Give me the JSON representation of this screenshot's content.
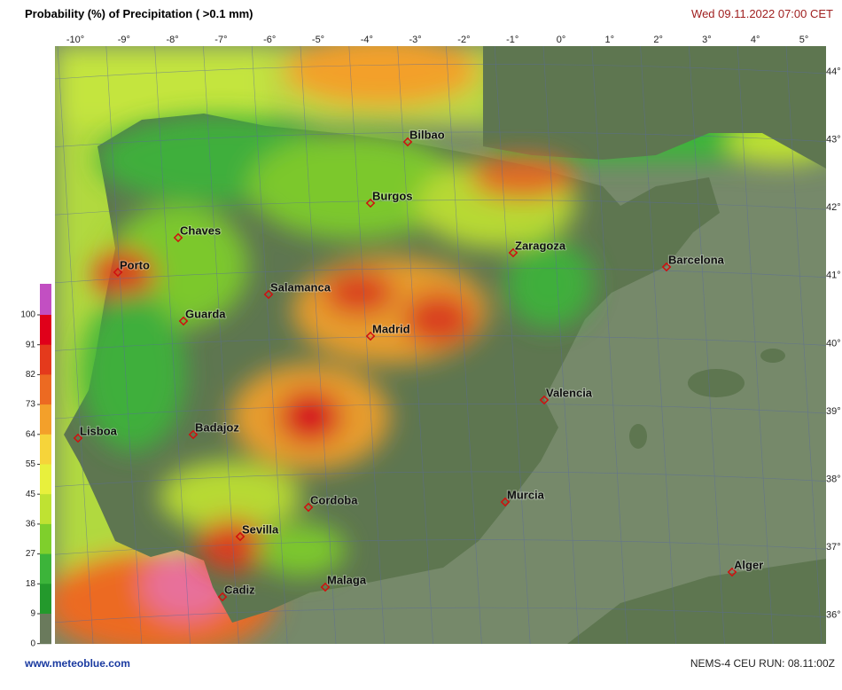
{
  "header": {
    "title": "Probability (%) of Precipitation ( >0.1 mm)",
    "datetime": "Wed 09.11.2022  07:00 CET"
  },
  "map": {
    "longitude_labels": [
      "-10°",
      "-9°",
      "-8°",
      "-7°",
      "-6°",
      "-5°",
      "-4°",
      "-3°",
      "-2°",
      "-1°",
      "0°",
      "1°",
      "2°",
      "3°",
      "4°",
      "5°"
    ],
    "latitude_labels": [
      "44°",
      "43°",
      "42°",
      "41°",
      "40°",
      "39°",
      "38°",
      "37°",
      "36°"
    ],
    "cities": [
      "Bilbao",
      "Burgos",
      "Chaves",
      "Porto",
      "Zaragoza",
      "Barcelona",
      "Salamanca",
      "Guarda",
      "Madrid",
      "Valencia",
      "Lisboa",
      "Badajoz",
      "Cordoba",
      "Murcia",
      "Sevilla",
      "Alger",
      "Malaga",
      "Cadiz"
    ]
  },
  "colorbar": {
    "ticks": [
      100,
      91,
      82,
      73,
      64,
      55,
      45,
      36,
      27,
      18,
      9,
      0
    ],
    "colors": [
      "#c24fc2",
      "#e0001a",
      "#e43a1c",
      "#ec6a22",
      "#f3a02a",
      "#f6d43a",
      "#e8f03c",
      "#bfe232",
      "#7fcf2c",
      "#3cb43a",
      "#23992c",
      "#6a7a5c"
    ]
  },
  "footer": {
    "site": "www.meteoblue.com",
    "model": "NEMS-4 CEU  RUN: 08.11:00Z"
  }
}
